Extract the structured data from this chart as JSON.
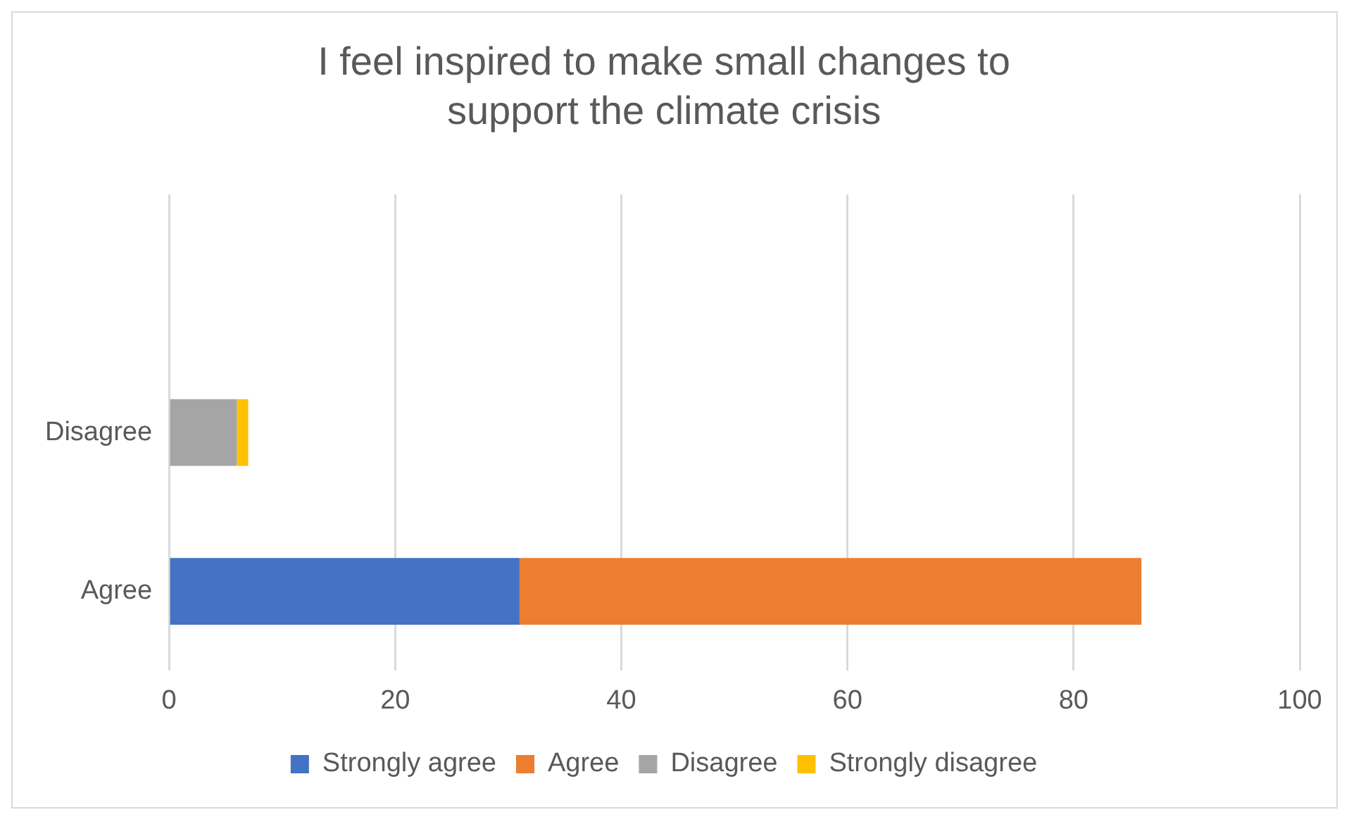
{
  "chart_data": {
    "type": "bar",
    "orientation": "horizontal",
    "stacked": true,
    "title": "I feel inspired to make small changes to support the climate crisis",
    "categories": [
      null,
      "Disagree",
      "Agree"
    ],
    "series": [
      {
        "name": "Strongly agree",
        "color": "#4472c4",
        "values": [
          null,
          null,
          31
        ]
      },
      {
        "name": "Agree",
        "color": "#ed7d31",
        "values": [
          null,
          null,
          55
        ]
      },
      {
        "name": "Disagree",
        "color": "#a5a5a5",
        "values": [
          null,
          6,
          null
        ]
      },
      {
        "name": "Strongly disagree",
        "color": "#ffc000",
        "values": [
          null,
          1,
          null
        ]
      }
    ],
    "xlim": [
      0,
      100
    ],
    "xticks": [
      0,
      20,
      40,
      60,
      80,
      100
    ],
    "grid": "x",
    "legend": "bottom"
  }
}
